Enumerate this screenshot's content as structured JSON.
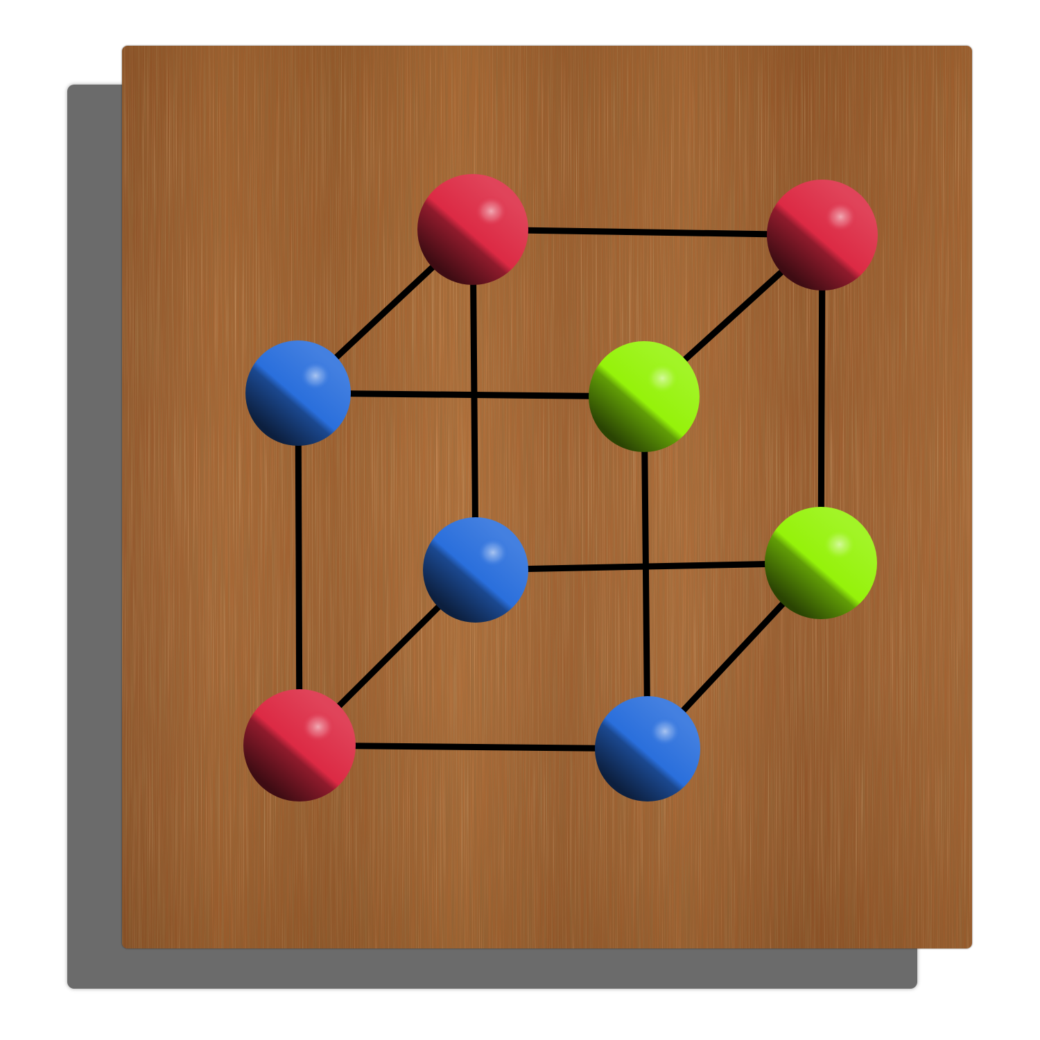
{
  "board": {
    "shadow_color": "#6b6b6b",
    "wood_base_color": "#9a5a2a",
    "wood_light_color": "#c07a3e",
    "wood_dark_color": "#6e3a18"
  },
  "puzzle": {
    "line_color": "#000000",
    "ball_colors": {
      "red": "#dc2a44",
      "blue": "#2a6fdc",
      "green": "#95f20a"
    },
    "nodes": [
      {
        "id": "back-top-left",
        "color": "red"
      },
      {
        "id": "back-top-right",
        "color": "red"
      },
      {
        "id": "front-top-left",
        "color": "blue"
      },
      {
        "id": "front-top-right",
        "color": "green"
      },
      {
        "id": "back-bottom-left",
        "color": "blue"
      },
      {
        "id": "back-bottom-right",
        "color": "green"
      },
      {
        "id": "front-bottom-left",
        "color": "red"
      },
      {
        "id": "front-bottom-right",
        "color": "blue"
      }
    ],
    "edges": [
      [
        "back-top-left",
        "back-top-right"
      ],
      [
        "back-top-left",
        "front-top-left"
      ],
      [
        "back-top-left",
        "back-bottom-left"
      ],
      [
        "back-top-right",
        "front-top-right"
      ],
      [
        "back-top-right",
        "back-bottom-right"
      ],
      [
        "front-top-left",
        "front-top-right"
      ],
      [
        "front-top-left",
        "front-bottom-left"
      ],
      [
        "front-top-right",
        "front-bottom-right"
      ],
      [
        "back-bottom-left",
        "back-bottom-right"
      ],
      [
        "back-bottom-left",
        "front-bottom-left"
      ],
      [
        "back-bottom-right",
        "front-bottom-right"
      ],
      [
        "front-bottom-left",
        "front-bottom-right"
      ]
    ]
  }
}
